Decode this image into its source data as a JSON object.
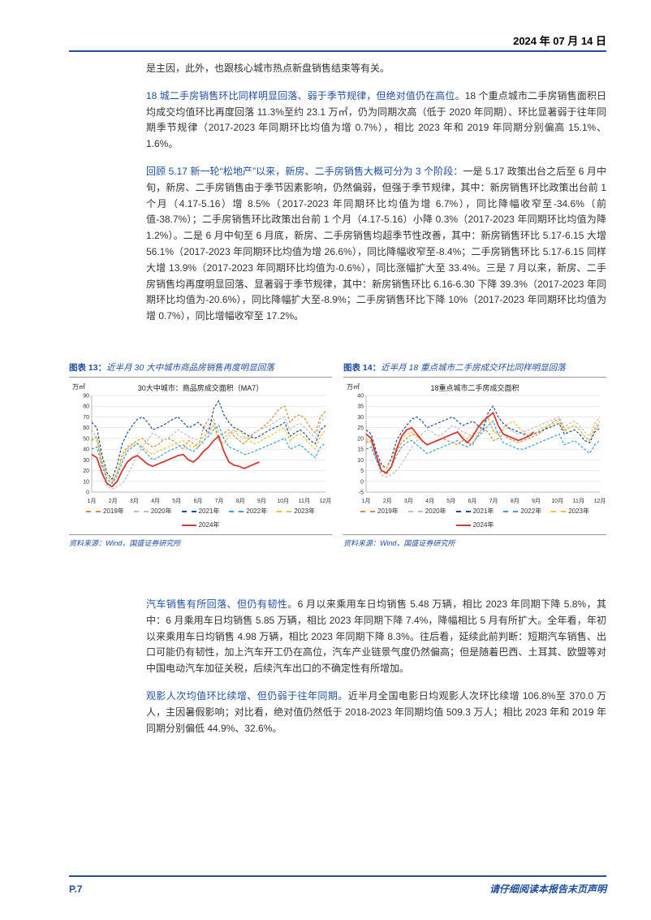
{
  "header": {
    "date": "2024 年 07 月 14 日"
  },
  "para1": "是主因，此外，也跟核心城市热点新盘销售结束等有关。",
  "para2_lead": "18 城二手房销售环比同样明显回落、弱于季节规律，但绝对值仍在高位。",
  "para2_rest": "18 个重点城市二手房销售面积日均成交均值环比再度回落 11.3%至约 23.1 万㎡，仍为同期次高（低于 2020 年同期）、环比显著弱于往年同期季节规律（2017-2023 年同期环比均值为增 0.7%），相比 2023 年和 2019 年同期分别偏高 15.1%、1.6%。",
  "para3_lead": "回顾 5.17 新一轮“松地产”以来，新房、二手房销售大概可分为 3 个阶段：",
  "para3_rest": "一是 5.17 政策出台之后至 6 月中旬，新房、二手房销售由于季节因素影响，仍然偏弱，但强于季节规律，其中：新房销售环比政策出台前 1 个月（4.17-5.16）增 8.5%（2017-2023 年同期环比均值为增 6.7%），同比降幅收窄至-34.6%（前值-38.7%）；二手房销售环比政策出台前 1 个月（4.17-5.16）小降 0.3%（2017-2023 年同期环比均值为降 1.2%）。二是 6 月中旬至 6 月底，新房、二手房销售均超季节性改善，其中：新房销售环比 5.17-6.15 大增 56.1%（2017-2023 年同期环比均值为增 26.6%），同比降幅收窄至-8.4%；二手房销售环比 5.17-6.15 同样大增 13.9%（2017-2023 年同期环比均值为-0.6%），同比涨幅扩大至 33.4%。三是 7 月以来，新房、二手房销售均再度明显回落、显著弱于季节规律，其中：新房销售环比 6.16-6.30 下降 39.3%（2017-2023 年同期环比均值为-20.6%），同比降幅扩大至-8.9%；二手房销售环比下降 10%（2017-2023 年同期环比均值为增 0.7%），同比增幅收窄至 17.2%。",
  "chart_left": {
    "caption_prefix": "图表 13：",
    "caption_text": "近半月 30 大中城市商品房销售再度明显回落",
    "inner_title": "30大中城市：商品房成交面积（MA7）",
    "ylabel": "万㎡",
    "ylim": [
      0,
      90
    ],
    "ytick_step": 10,
    "xticks": [
      "1月",
      "2月",
      "3月",
      "4月",
      "5月",
      "6月",
      "7月",
      "8月",
      "9月",
      "10月",
      "11月",
      "12月"
    ],
    "series_colors": {
      "2019": "#d88b3a",
      "2020": "#bdbdbd",
      "2021": "#1f4e9c",
      "2022": "#3aa0d8",
      "2023": "#e8c23a",
      "2024": "#d13a3a"
    },
    "series_dashed": {
      "2019": true,
      "2020": true,
      "2021": true,
      "2022": true,
      "2023": true,
      "2024": false
    },
    "series": {
      "2019": [
        48,
        52,
        30,
        12,
        8,
        18,
        35,
        42,
        45,
        48,
        50,
        45,
        42,
        44,
        48,
        50,
        48,
        44,
        40,
        48,
        45,
        42,
        60,
        68,
        65,
        50,
        55,
        58,
        52,
        48,
        45,
        50,
        55,
        58,
        62,
        66,
        72,
        78,
        80,
        65,
        70,
        72,
        68,
        60,
        55,
        70,
        75
      ],
      "2020": [
        58,
        50,
        20,
        5,
        3,
        5,
        8,
        15,
        25,
        35,
        42,
        48,
        55,
        52,
        48,
        50,
        54,
        58,
        55,
        52,
        50,
        48,
        45,
        62,
        68,
        55,
        50,
        55,
        58,
        52,
        50,
        52,
        55,
        58,
        60,
        62,
        65,
        68,
        70,
        58,
        62,
        64,
        60,
        55,
        50,
        65,
        70
      ],
      "2021": [
        65,
        60,
        35,
        18,
        12,
        25,
        45,
        55,
        62,
        68,
        70,
        65,
        58,
        60,
        62,
        65,
        68,
        70,
        65,
        60,
        62,
        65,
        60,
        55,
        78,
        85,
        72,
        65,
        60,
        58,
        55,
        52,
        50,
        52,
        55,
        58,
        60,
        62,
        65,
        52,
        55,
        58,
        54,
        48,
        45,
        58,
        62
      ],
      "2022": [
        40,
        42,
        25,
        12,
        8,
        15,
        28,
        38,
        42,
        45,
        40,
        35,
        30,
        32,
        35,
        38,
        40,
        42,
        44,
        40,
        38,
        42,
        48,
        52,
        58,
        62,
        50,
        42,
        40,
        38,
        35,
        36,
        38,
        40,
        42,
        44,
        46,
        48,
        50,
        40,
        42,
        44,
        40,
        36,
        32,
        42,
        46
      ],
      "2023": [
        50,
        48,
        28,
        15,
        10,
        18,
        32,
        40,
        44,
        46,
        42,
        38,
        35,
        38,
        40,
        42,
        44,
        46,
        48,
        44,
        42,
        46,
        52,
        56,
        62,
        48,
        45,
        52,
        56,
        58,
        52,
        48,
        45,
        47,
        50,
        52,
        55,
        58,
        60,
        48,
        52,
        54,
        50,
        44,
        40,
        52,
        58
      ],
      "2024": [
        35,
        32,
        18,
        8,
        5,
        10,
        20,
        28,
        32,
        34,
        30,
        26,
        24,
        26,
        28,
        30,
        32,
        34,
        35,
        30,
        28,
        32,
        38,
        42,
        48,
        52,
        38,
        28,
        25,
        24,
        22,
        24,
        26,
        28
      ]
    },
    "legend_items": [
      {
        "label": "2019年",
        "color": "#d88b3a",
        "solid": false
      },
      {
        "label": "2020年",
        "color": "#bdbdbd",
        "solid": false
      },
      {
        "label": "2021年",
        "color": "#1f4e9c",
        "solid": false
      },
      {
        "label": "2022年",
        "color": "#3aa0d8",
        "solid": false
      },
      {
        "label": "2023年",
        "color": "#e8c23a",
        "solid": false
      },
      {
        "label": "2024年",
        "color": "#d13a3a",
        "solid": true
      }
    ],
    "source": "资料来源：Wind，国盛证券研究所"
  },
  "chart_right": {
    "caption_prefix": "图表 14：",
    "caption_text": "近半月 18 重点城市二手房成交环比同样明显回落",
    "inner_title": "18重点城市二手房成交面积",
    "ylabel": "万㎡",
    "ylim": [
      -5,
      40
    ],
    "ytick_step": 5,
    "xticks": [
      "1月",
      "2月",
      "3月",
      "4月",
      "5月",
      "6月",
      "7月",
      "8月",
      "9月",
      "10月",
      "11月",
      "12月"
    ],
    "series": {
      "2019": [
        18,
        19,
        12,
        5,
        3,
        7,
        14,
        18,
        20,
        22,
        21,
        19,
        17,
        18,
        19,
        20,
        19,
        18,
        17,
        19,
        18,
        17,
        22,
        25,
        23,
        19,
        20,
        22,
        20,
        19,
        18,
        19,
        20,
        21,
        22,
        24,
        26,
        28,
        29,
        24,
        25,
        26,
        24,
        21,
        19,
        24,
        27
      ],
      "2020": [
        20,
        18,
        10,
        3,
        2,
        3,
        5,
        8,
        12,
        16,
        19,
        22,
        24,
        23,
        21,
        22,
        24,
        26,
        25,
        23,
        22,
        21,
        20,
        26,
        29,
        24,
        22,
        24,
        25,
        23,
        22,
        23,
        24,
        25,
        26,
        27,
        28,
        29,
        30,
        25,
        27,
        28,
        26,
        23,
        21,
        27,
        30
      ],
      "2021": [
        24,
        22,
        14,
        8,
        6,
        11,
        19,
        23,
        26,
        29,
        30,
        28,
        25,
        26,
        27,
        28,
        29,
        30,
        28,
        26,
        27,
        28,
        26,
        24,
        32,
        35,
        30,
        27,
        25,
        24,
        23,
        22,
        21,
        22,
        23,
        24,
        25,
        26,
        27,
        22,
        23,
        24,
        22,
        19,
        18,
        23,
        25
      ],
      "2022": [
        15,
        16,
        10,
        5,
        4,
        7,
        12,
        16,
        18,
        19,
        17,
        15,
        13,
        14,
        15,
        16,
        17,
        18,
        19,
        17,
        16,
        18,
        21,
        23,
        26,
        28,
        22,
        18,
        17,
        16,
        15,
        15,
        16,
        17,
        18,
        19,
        20,
        21,
        22,
        17,
        18,
        19,
        17,
        15,
        13,
        17,
        19
      ],
      "2023": [
        19,
        18,
        12,
        7,
        6,
        10,
        16,
        20,
        22,
        23,
        21,
        19,
        17,
        18,
        19,
        20,
        21,
        22,
        23,
        21,
        20,
        22,
        25,
        27,
        30,
        23,
        22,
        25,
        27,
        28,
        25,
        23,
        21,
        22,
        24,
        25,
        26,
        27,
        28,
        23,
        25,
        26,
        24,
        21,
        19,
        25,
        28
      ],
      "2024": [
        22,
        20,
        12,
        5,
        4,
        7,
        15,
        21,
        24,
        25,
        22,
        19,
        17,
        18,
        19,
        20,
        21,
        22,
        23,
        20,
        18,
        21,
        25,
        28,
        30,
        32,
        26,
        22,
        21,
        20,
        19,
        20,
        21,
        23
      ]
    },
    "legend_items": [
      {
        "label": "2019年",
        "color": "#d88b3a",
        "solid": false
      },
      {
        "label": "2020年",
        "color": "#bdbdbd",
        "solid": false
      },
      {
        "label": "2021年",
        "color": "#1f4e9c",
        "solid": false
      },
      {
        "label": "2022年",
        "color": "#3aa0d8",
        "solid": false
      },
      {
        "label": "2023年",
        "color": "#e8c23a",
        "solid": false
      },
      {
        "label": "2024年",
        "color": "#d13a3a",
        "solid": true
      }
    ],
    "source": "资料来源：Wind，国盛证券研究所"
  },
  "para4_lead": "汽车销售有所回落、但仍有韧性。",
  "para4_rest": "6 月以来乘用车日均销售 5.48 万辆，相比 2023 年同期下降 5.8%，其中：6 月乘用车日均销售 5.85 万辆，相比 2023 年同期下降 7.4%，降幅相比 5 月有所扩大。全年看，年初以来乘用车日均销售 4.98 万辆，相比 2023 年同期下降 8.3%。往后看，延续此前判断：短期汽车销售、出口可能仍有韧性，加上汽车开工仍在高位，汽车产业链景气度仍然偏高；但是随着巴西、土耳其、欧盟等对中国电动汽车加征关税，后续汽车出口的不确定性有所增加。",
  "para5_lead": "观影人次均值环比续增、但仍弱于往年同期。",
  "para5_rest": "近半月全国电影日均观影人次环比续增 106.8%至 370.0 万人，主因暑假影响；对比看，绝对值仍然低于 2018-2023 年同期均值 509.3 万人；相比 2023 年和 2019 年同期分别偏低 44.9%、32.6%。",
  "footer": {
    "page": "P.7",
    "disclaimer": "请仔细阅读本报告末页声明"
  }
}
